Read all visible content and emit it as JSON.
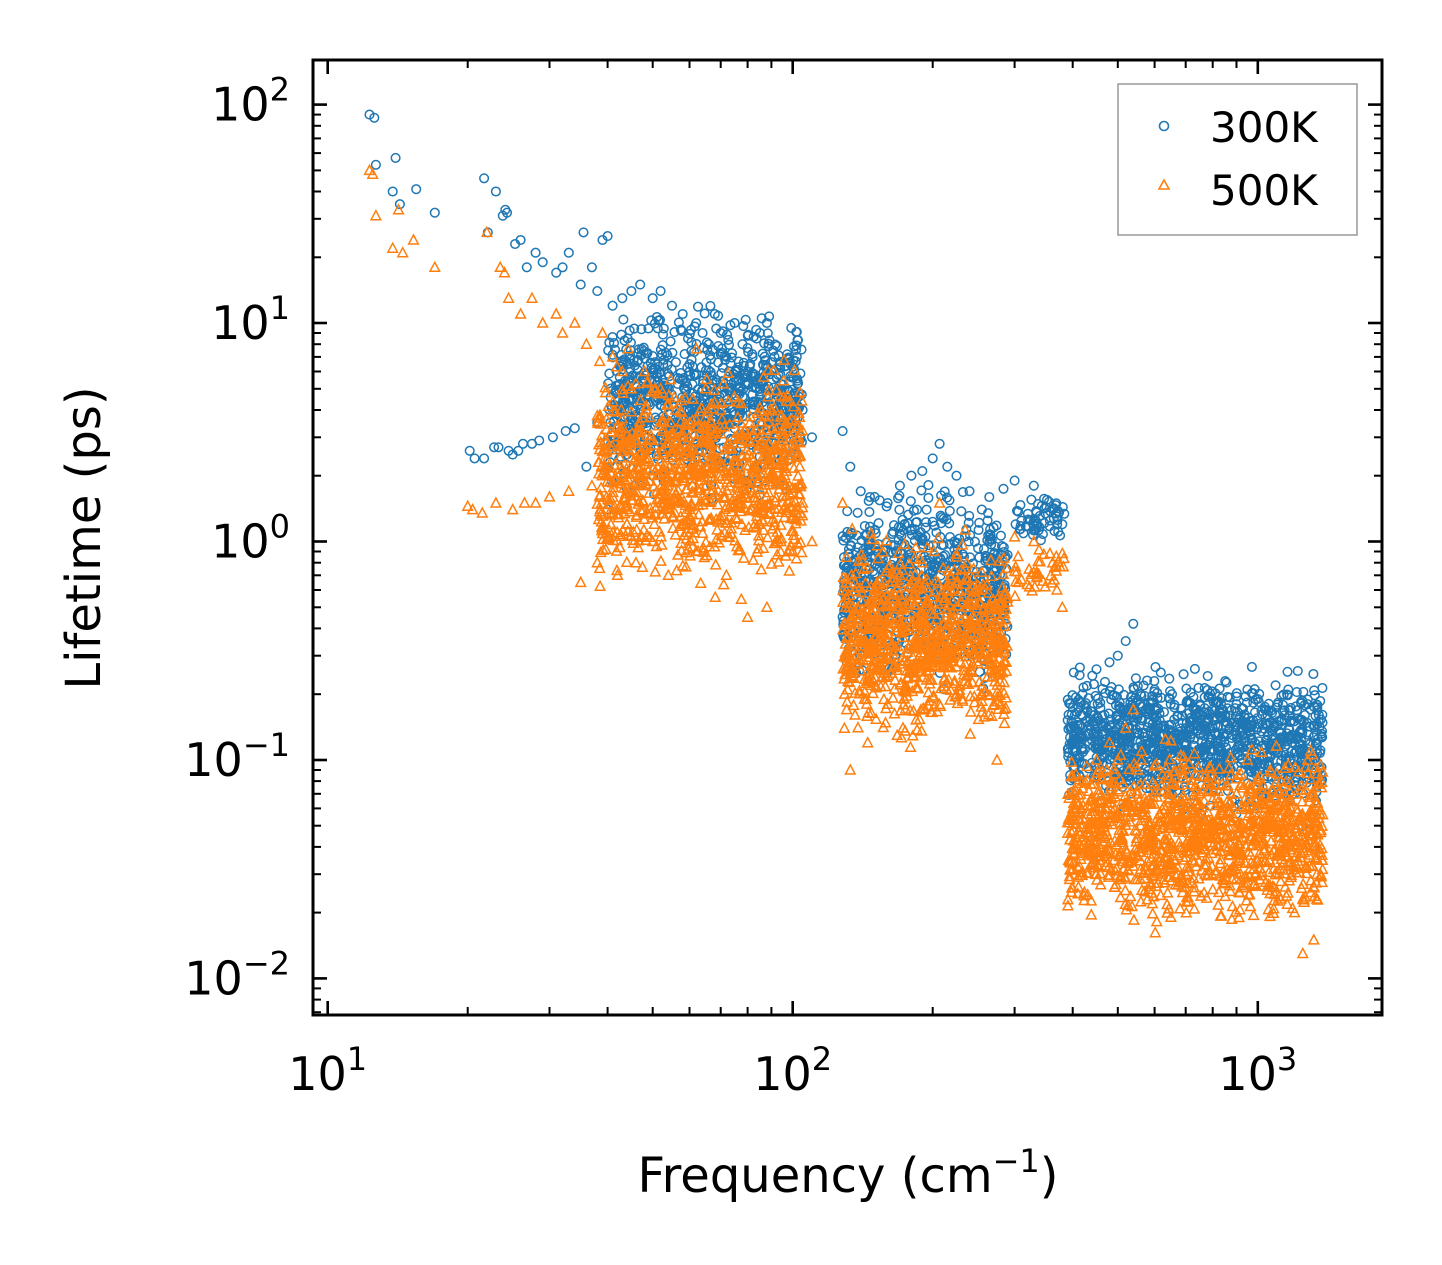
{
  "colors": {
    "s300": "#1f77b4",
    "s500": "#ff7f0e",
    "axis": "#000000",
    "legend_border": "#999999"
  },
  "chart_data": {
    "type": "scatter",
    "title": "",
    "xlabel": "Frequency (cm",
    "xlabel_sup": "−1",
    "xlabel_suffix": ")",
    "ylabel": "Lifetime (ps)",
    "xscale": "log",
    "yscale": "log",
    "xlim": [
      9.3,
      1850
    ],
    "ylim": [
      0.0068,
      160
    ],
    "legend_position": "top-right",
    "x_ticks": [
      {
        "value": 10,
        "base": "10",
        "exp": "1"
      },
      {
        "value": 100,
        "base": "10",
        "exp": "2"
      },
      {
        "value": 1000,
        "base": "10",
        "exp": "3"
      }
    ],
    "y_ticks": [
      {
        "value": 0.01,
        "base": "10",
        "exp": "−2"
      },
      {
        "value": 0.1,
        "base": "10",
        "exp": "−1"
      },
      {
        "value": 1,
        "base": "10",
        "exp": "0"
      },
      {
        "value": 10,
        "base": "10",
        "exp": "1"
      },
      {
        "value": 100,
        "base": "10",
        "exp": "2"
      }
    ],
    "series": [
      {
        "name": "300K",
        "marker": "circle",
        "points": [
          [
            12.3,
            90
          ],
          [
            12.6,
            87
          ],
          [
            12.7,
            53
          ],
          [
            13.8,
            40
          ],
          [
            14.0,
            57
          ],
          [
            14.3,
            35
          ],
          [
            15.5,
            41
          ],
          [
            17.0,
            32
          ],
          [
            20.2,
            2.6
          ],
          [
            20.7,
            2.4
          ],
          [
            21.7,
            2.4
          ],
          [
            21.7,
            46
          ],
          [
            22.1,
            26
          ],
          [
            22.8,
            2.7
          ],
          [
            23.0,
            40
          ],
          [
            23.3,
            2.7
          ],
          [
            23.8,
            31
          ],
          [
            24.1,
            33
          ],
          [
            24.3,
            32
          ],
          [
            24.5,
            2.6
          ],
          [
            25.0,
            2.5
          ],
          [
            25.3,
            23
          ],
          [
            25.7,
            2.6
          ],
          [
            26.0,
            24
          ],
          [
            26.3,
            2.8
          ],
          [
            26.8,
            18
          ],
          [
            27.5,
            2.8
          ],
          [
            28.0,
            21
          ],
          [
            28.5,
            2.9
          ],
          [
            29.0,
            19
          ],
          [
            30.5,
            3.0
          ],
          [
            31.0,
            17
          ],
          [
            32.0,
            18
          ],
          [
            32.5,
            3.2
          ],
          [
            33.0,
            21
          ],
          [
            34.0,
            3.3
          ],
          [
            35.0,
            15
          ],
          [
            35.5,
            26
          ],
          [
            36.0,
            2.2
          ],
          [
            37.0,
            18
          ],
          [
            38.0,
            14
          ],
          [
            38.0,
            3.5
          ],
          [
            39.0,
            24
          ],
          [
            40.0,
            25
          ],
          [
            40.0,
            1.4
          ],
          [
            41.0,
            12
          ],
          [
            42.0,
            4.0
          ],
          [
            43.0,
            13
          ],
          [
            44.0,
            2.5
          ],
          [
            45.0,
            14
          ],
          [
            46.0,
            3.8
          ],
          [
            47.0,
            15
          ],
          [
            48.0,
            5.0
          ],
          [
            50.0,
            13
          ],
          [
            50.0,
            2.0
          ],
          [
            52.0,
            14
          ],
          [
            54.0,
            4.5
          ],
          [
            55.0,
            12
          ],
          [
            57.0,
            3.5
          ],
          [
            58.0,
            11
          ],
          [
            60.0,
            6
          ],
          [
            62.0,
            10
          ],
          [
            64.0,
            9
          ],
          [
            66.0,
            8
          ],
          [
            68.0,
            11
          ],
          [
            70.0,
            9
          ],
          [
            72.0,
            7
          ],
          [
            75.0,
            10
          ],
          [
            78.0,
            8
          ],
          [
            80.0,
            6
          ],
          [
            82.0,
            7
          ],
          [
            85.0,
            9
          ],
          [
            88.0,
            10
          ],
          [
            90.0,
            6
          ],
          [
            93.0,
            5
          ],
          [
            96.0,
            5
          ],
          [
            100,
            4.5
          ],
          [
            105,
            4
          ],
          [
            110,
            3
          ],
          [
            128,
            3.2
          ],
          [
            133,
            2.2
          ],
          [
            140,
            1.7
          ],
          [
            150,
            1.6
          ],
          [
            160,
            1.5
          ],
          [
            170,
            1.8
          ],
          [
            180,
            2.0
          ],
          [
            190,
            2.1
          ],
          [
            200,
            2.4
          ],
          [
            207,
            2.8
          ],
          [
            215,
            2.2
          ],
          [
            225,
            2.0
          ],
          [
            240,
            1.7
          ],
          [
            255,
            1.4
          ],
          [
            265,
            1.0
          ],
          [
            300,
            1.9
          ],
          [
            330,
            1.8
          ],
          [
            370,
            1.3
          ],
          [
            380,
            1.2
          ],
          [
            400,
            0.11
          ],
          [
            420,
            0.2
          ],
          [
            450,
            0.26
          ],
          [
            480,
            0.28
          ],
          [
            500,
            0.3
          ],
          [
            520,
            0.35
          ],
          [
            540,
            0.42
          ],
          [
            560,
            0.2
          ],
          [
            600,
            0.21
          ],
          [
            650,
            0.18
          ],
          [
            700,
            0.14
          ],
          [
            750,
            0.15
          ],
          [
            800,
            0.14
          ],
          [
            850,
            0.16
          ],
          [
            900,
            0.18
          ],
          [
            950,
            0.21
          ],
          [
            1000,
            0.19
          ],
          [
            1050,
            0.16
          ],
          [
            1100,
            0.12
          ],
          [
            1150,
            0.09
          ],
          [
            1200,
            0.07
          ],
          [
            1250,
            0.05
          ],
          [
            1280,
            0.18
          ],
          [
            1300,
            0.17
          ],
          [
            1320,
            0.09
          ],
          [
            1340,
            0.12
          ]
        ]
      },
      {
        "name": "500K",
        "marker": "triangle",
        "points": [
          [
            12.3,
            50
          ],
          [
            12.5,
            48
          ],
          [
            12.7,
            31
          ],
          [
            13.8,
            22
          ],
          [
            14.2,
            33
          ],
          [
            14.5,
            21
          ],
          [
            15.3,
            24
          ],
          [
            17.0,
            18
          ],
          [
            20.0,
            1.45
          ],
          [
            20.5,
            1.4
          ],
          [
            21.5,
            1.35
          ],
          [
            22.0,
            26
          ],
          [
            23.0,
            1.5
          ],
          [
            23.5,
            18
          ],
          [
            24.0,
            17
          ],
          [
            24.5,
            13
          ],
          [
            25.0,
            1.4
          ],
          [
            26.0,
            11
          ],
          [
            26.5,
            1.5
          ],
          [
            27.5,
            13
          ],
          [
            28.0,
            1.5
          ],
          [
            29.0,
            10
          ],
          [
            30.0,
            1.6
          ],
          [
            31.0,
            11
          ],
          [
            32.0,
            9
          ],
          [
            33.0,
            1.7
          ],
          [
            34.0,
            10
          ],
          [
            35.0,
            0.65
          ],
          [
            36.0,
            8
          ],
          [
            37.0,
            1.8
          ],
          [
            38.0,
            0.8
          ],
          [
            39.0,
            9
          ],
          [
            40.0,
            2.0
          ],
          [
            41.0,
            7
          ],
          [
            42.0,
            0.7
          ],
          [
            43.0,
            6
          ],
          [
            44.0,
            1.2
          ],
          [
            45.0,
            5
          ],
          [
            46.0,
            0.8
          ],
          [
            47.0,
            2.5
          ],
          [
            48.0,
            6
          ],
          [
            50.0,
            1.0
          ],
          [
            52.0,
            5
          ],
          [
            54.0,
            0.7
          ],
          [
            56.0,
            4
          ],
          [
            58.0,
            1.2
          ],
          [
            60.0,
            3.5
          ],
          [
            62.0,
            0.9
          ],
          [
            65.0,
            5
          ],
          [
            67.0,
            2.5
          ],
          [
            70.0,
            4
          ],
          [
            72.0,
            0.7
          ],
          [
            75.0,
            3
          ],
          [
            77.0,
            1.5
          ],
          [
            80.0,
            0.45
          ],
          [
            82.0,
            2
          ],
          [
            85.0,
            1.2
          ],
          [
            88.0,
            0.5
          ],
          [
            90.0,
            2.5
          ],
          [
            93.0,
            1.0
          ],
          [
            96.0,
            2.2
          ],
          [
            100,
            0.9
          ],
          [
            105,
            1.5
          ],
          [
            110,
            1.0
          ],
          [
            128,
            1.5
          ],
          [
            133,
            0.09
          ],
          [
            138,
            0.5
          ],
          [
            145,
            0.12
          ],
          [
            150,
            0.6
          ],
          [
            160,
            0.18
          ],
          [
            170,
            0.7
          ],
          [
            180,
            0.25
          ],
          [
            190,
            0.8
          ],
          [
            200,
            0.3
          ],
          [
            207,
            1.5
          ],
          [
            215,
            0.6
          ],
          [
            225,
            0.2
          ],
          [
            240,
            0.6
          ],
          [
            255,
            0.2
          ],
          [
            265,
            0.5
          ],
          [
            275,
            0.1
          ],
          [
            300,
            1.05
          ],
          [
            330,
            1.0
          ],
          [
            370,
            0.6
          ],
          [
            380,
            0.5
          ],
          [
            400,
            0.06
          ],
          [
            420,
            0.08
          ],
          [
            450,
            0.1
          ],
          [
            480,
            0.12
          ],
          [
            500,
            0.1
          ],
          [
            520,
            0.14
          ],
          [
            540,
            0.17
          ],
          [
            560,
            0.05
          ],
          [
            600,
            0.04
          ],
          [
            650,
            0.06
          ],
          [
            700,
            0.03
          ],
          [
            750,
            0.07
          ],
          [
            800,
            0.05
          ],
          [
            850,
            0.04
          ],
          [
            900,
            0.07
          ],
          [
            950,
            0.1
          ],
          [
            1000,
            0.06
          ],
          [
            1050,
            0.05
          ],
          [
            1100,
            0.025
          ],
          [
            1150,
            0.04
          ],
          [
            1200,
            0.02
          ],
          [
            1250,
            0.013
          ],
          [
            1280,
            0.1
          ],
          [
            1300,
            0.11
          ],
          [
            1320,
            0.015
          ],
          [
            1340,
            0.03
          ]
        ]
      }
    ],
    "clusters": [
      {
        "series": "300K",
        "x": [
          40,
          105
        ],
        "y": [
          1.3,
          14
        ],
        "n": 900
      },
      {
        "series": "300K",
        "x": [
          128,
          290
        ],
        "y": [
          0.18,
          2.2
        ],
        "n": 800
      },
      {
        "series": "300K",
        "x": [
          300,
          385
        ],
        "y": [
          0.9,
          1.9
        ],
        "n": 60
      },
      {
        "series": "300K",
        "x": [
          390,
          1380
        ],
        "y": [
          0.05,
          0.3
        ],
        "n": 1200
      },
      {
        "series": "500K",
        "x": [
          38,
          105
        ],
        "y": [
          0.5,
          8
        ],
        "n": 1000
      },
      {
        "series": "500K",
        "x": [
          128,
          290
        ],
        "y": [
          0.1,
          1.3
        ],
        "n": 900
      },
      {
        "series": "500K",
        "x": [
          300,
          385
        ],
        "y": [
          0.5,
          1.05
        ],
        "n": 40
      },
      {
        "series": "500K",
        "x": [
          390,
          1380
        ],
        "y": [
          0.015,
          0.14
        ],
        "n": 1300
      }
    ]
  }
}
